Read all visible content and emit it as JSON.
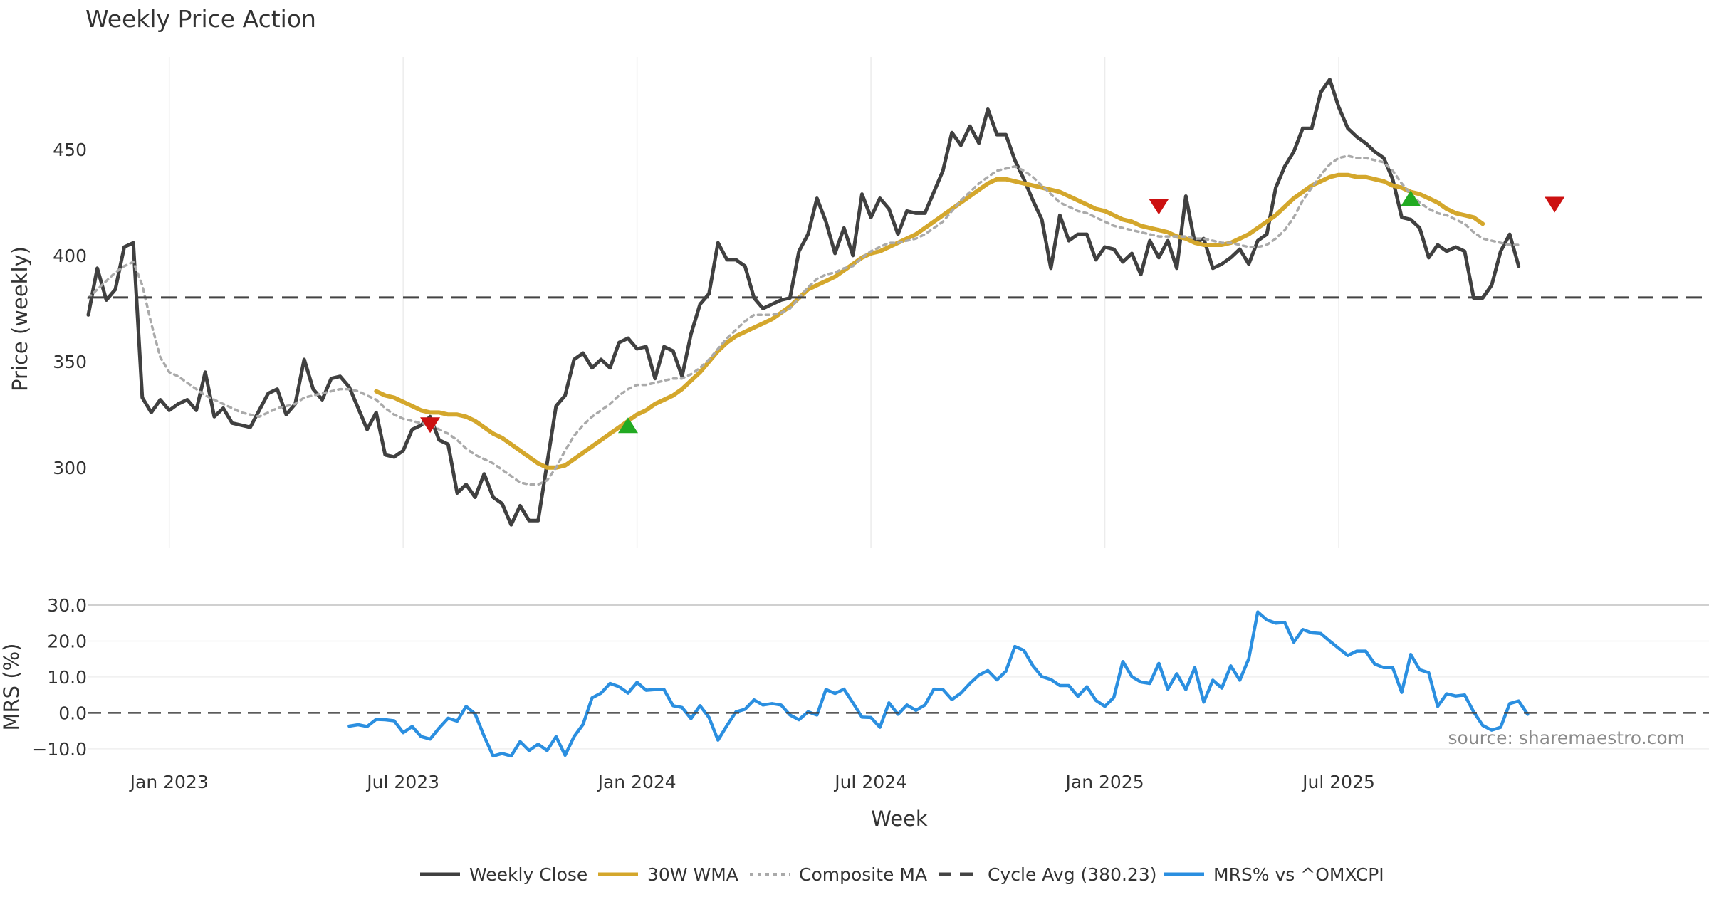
{
  "chart_data": {
    "type": "line",
    "title": "Weekly Price Action",
    "source": "source: sharemaestro.com",
    "xlabel": "Week",
    "x_tick_labels": [
      "Jan 2023",
      "Jul 2023",
      "Jan 2024",
      "Jul 2024",
      "Jan 2025",
      "Jul 2025"
    ],
    "price_panel": {
      "ylabel": "Price (weekly)",
      "ylim": [
        262,
        497
      ],
      "yticks": [
        300,
        350,
        400,
        450
      ],
      "week_range": [
        0,
        180
      ],
      "series": [
        {
          "name": "Weekly Close",
          "color": "#404040",
          "style": "solid",
          "start_week": 0,
          "values": [
            372,
            394,
            379,
            384,
            404,
            406,
            333,
            326,
            332,
            327,
            330,
            332,
            327,
            345,
            324,
            328,
            321,
            320,
            319,
            327,
            335,
            337,
            325,
            330,
            351,
            337,
            332,
            342,
            343,
            338,
            328,
            318,
            326,
            306,
            305,
            308,
            318,
            320,
            324,
            313,
            311,
            288,
            292,
            286,
            297,
            286,
            283,
            273,
            282,
            275,
            275,
            302,
            329,
            334,
            351,
            354,
            347,
            351,
            347,
            359,
            361,
            356,
            357,
            342,
            357,
            355,
            343,
            363,
            377,
            382,
            406,
            398,
            398,
            395,
            380,
            375,
            377,
            379,
            380,
            402,
            410,
            427,
            416,
            401,
            413,
            400,
            429,
            418,
            427,
            422,
            410,
            421,
            420,
            420,
            430,
            440,
            458,
            452,
            461,
            453,
            469,
            457,
            457,
            445,
            436,
            426,
            417,
            394,
            419,
            407,
            410,
            410,
            398,
            404,
            403,
            397,
            401,
            391,
            407,
            399,
            407,
            394,
            428,
            406,
            408,
            394,
            396,
            399,
            403,
            396,
            407,
            410,
            432,
            442,
            449,
            460,
            460,
            477,
            483,
            470,
            460,
            456,
            453,
            449,
            446,
            436,
            418,
            417,
            413,
            399,
            405,
            402,
            404,
            402,
            380,
            380,
            386,
            402,
            410,
            395
          ]
        },
        {
          "name": "30W WMA",
          "color": "#d4a72c",
          "style": "solid",
          "start_week": 32,
          "values": [
            336,
            334,
            333,
            331,
            329,
            327,
            326,
            326,
            325,
            325,
            324,
            322,
            319,
            316,
            314,
            311,
            308,
            305,
            302,
            300,
            300,
            301,
            304,
            307,
            310,
            313,
            316,
            319,
            322,
            325,
            327,
            330,
            332,
            334,
            337,
            341,
            345,
            350,
            355,
            359,
            362,
            364,
            366,
            368,
            370,
            373,
            376,
            380,
            384,
            386,
            388,
            390,
            393,
            396,
            399,
            401,
            402,
            404,
            406,
            408,
            410,
            413,
            416,
            419,
            422,
            425,
            428,
            431,
            434,
            436,
            436,
            435,
            434,
            433,
            432,
            431,
            430,
            428,
            426,
            424,
            422,
            421,
            419,
            417,
            416,
            414,
            413,
            412,
            411,
            409,
            408,
            406,
            405,
            405,
            405,
            406,
            408,
            410,
            413,
            416,
            419,
            423,
            427,
            430,
            433,
            435,
            437,
            438,
            438,
            437,
            437,
            436,
            435,
            433,
            432,
            430,
            429,
            427,
            425,
            422,
            420,
            419,
            418,
            415
          ]
        },
        {
          "name": "Composite MA",
          "color": "#aaaaaa",
          "style": "dotted",
          "start_week": 0,
          "values": [
            380,
            384,
            388,
            392,
            395,
            397,
            386,
            368,
            352,
            345,
            343,
            340,
            337,
            334,
            332,
            330,
            328,
            326,
            325,
            324,
            326,
            328,
            329,
            330,
            333,
            334,
            335,
            336,
            337,
            337,
            336,
            334,
            332,
            328,
            325,
            323,
            322,
            321,
            320,
            318,
            316,
            313,
            309,
            306,
            304,
            302,
            299,
            296,
            293,
            292,
            292,
            294,
            300,
            308,
            315,
            320,
            324,
            327,
            330,
            334,
            337,
            339,
            339,
            340,
            341,
            342,
            342,
            344,
            347,
            351,
            356,
            361,
            365,
            369,
            372,
            372,
            372,
            373,
            375,
            380,
            385,
            389,
            391,
            392,
            394,
            395,
            399,
            402,
            404,
            406,
            406,
            407,
            408,
            410,
            413,
            416,
            421,
            426,
            430,
            434,
            437,
            440,
            441,
            442,
            440,
            437,
            433,
            429,
            425,
            423,
            421,
            420,
            418,
            416,
            414,
            413,
            412,
            411,
            410,
            409,
            409,
            409,
            409,
            408,
            408,
            407,
            406,
            406,
            405,
            404,
            404,
            405,
            408,
            412,
            418,
            426,
            432,
            438,
            443,
            446,
            447,
            446,
            446,
            445,
            444,
            440,
            434,
            429,
            425,
            422,
            420,
            419,
            417,
            415,
            411,
            408,
            407,
            406,
            405,
            405
          ]
        },
        {
          "name": "Cycle Avg (380.23)",
          "color": "#444444",
          "style": "dashed",
          "value": 380.23
        }
      ],
      "signals": [
        {
          "type": "sell",
          "week": 38,
          "price": 320,
          "color": "#cc1111"
        },
        {
          "type": "buy",
          "week": 60,
          "price": 320,
          "color": "#22aa22"
        },
        {
          "type": "sell",
          "week": 119,
          "price": 423,
          "color": "#cc1111"
        },
        {
          "type": "buy",
          "week": 147,
          "price": 427,
          "color": "#22aa22"
        },
        {
          "type": "sell",
          "week": 163,
          "price": 424,
          "color": "#cc1111"
        }
      ]
    },
    "mrs_panel": {
      "ylabel": "MRS (%)",
      "ylim": [
        -14,
        31
      ],
      "yticks": [
        30,
        20,
        10,
        0,
        -10
      ],
      "ytick_labels": [
        "30.0",
        "20.0",
        "10.0",
        "0.0",
        "−10.0"
      ],
      "series": [
        {
          "name": "MRS% vs ^OMXCPI",
          "color": "#2b8fe0",
          "style": "solid",
          "start_week": 29,
          "values": [
            -3.7,
            -3.3,
            -3.8,
            -1.8,
            -1.9,
            -2.2,
            -5.5,
            -3.8,
            -6.6,
            -7.3,
            -4.2,
            -1.5,
            -2.3,
            1.8,
            -0.3,
            -6.5,
            -12,
            -11.3,
            -12,
            -8,
            -10.5,
            -8.7,
            -10.5,
            -6.6,
            -11.8,
            -6.6,
            -3.2,
            4.2,
            5.5,
            8.2,
            7.3,
            5.5,
            8.5,
            6.3,
            6.5,
            6.5,
            2,
            1.5,
            -1.6,
            2,
            -1.3,
            -7.6,
            -3.5,
            0.3,
            1,
            3.6,
            2.2,
            2.6,
            2.2,
            -0.6,
            -1.9,
            0.3,
            -0.6,
            6.5,
            5.4,
            6.6,
            2.8,
            -1.2,
            -1.3,
            -4,
            2.8,
            -0.4,
            2.2,
            0.7,
            2.2,
            6.6,
            6.5,
            3.7,
            5.5,
            8.2,
            10.5,
            11.8,
            9.2,
            11.6,
            18.5,
            17.4,
            13.1,
            10.1,
            9.3,
            7.6,
            7.6,
            4.6,
            7.3,
            3.5,
            1.8,
            4.3,
            14.3,
            10.1,
            8.6,
            8.2,
            13.8,
            6.6,
            10.9,
            6.5,
            12.6,
            3,
            9.1,
            6.9,
            13.1,
            9.1,
            15.1,
            28.1,
            25.9,
            25,
            25.2,
            19.7,
            23.2,
            22.3,
            22.1,
            20,
            18,
            16,
            17.2,
            17.2,
            13.6,
            12.6,
            12.6,
            5.7,
            16.3,
            12,
            11.2,
            1.8,
            5.3,
            4.7,
            5,
            0.3,
            -3.5,
            -4.8,
            -4,
            2.6,
            3.3,
            -0.4
          ]
        },
        {
          "name": "zero line",
          "color": "#444444",
          "style": "dashed",
          "value": 0
        }
      ]
    },
    "legend": {
      "position": "bottom",
      "entries": [
        "Weekly Close",
        "30W WMA",
        "Composite MA",
        "Cycle Avg (380.23)",
        "MRS% vs ^OMXCPI"
      ]
    }
  }
}
